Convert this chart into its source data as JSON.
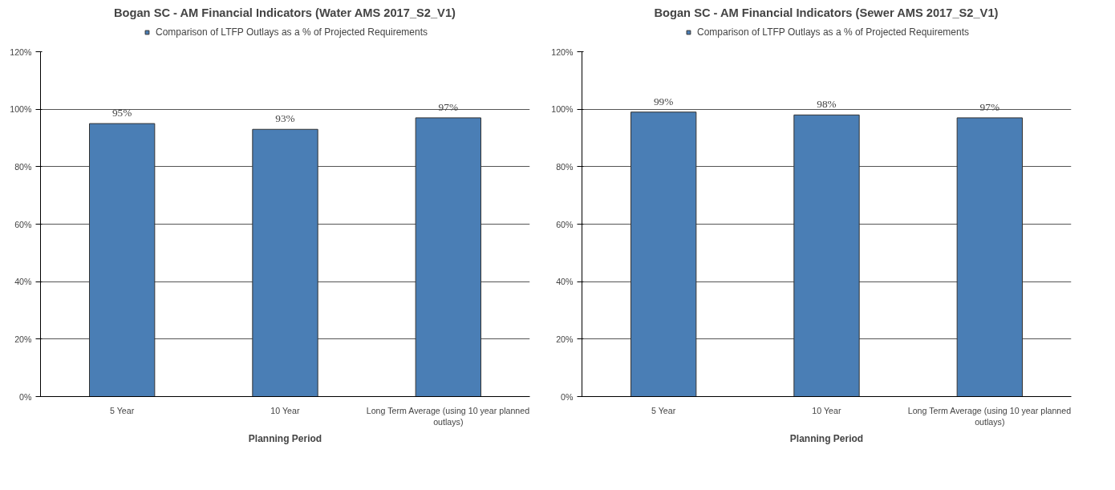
{
  "chart_data": [
    {
      "type": "bar",
      "title": "Bogan SC - AM Financial Indicators (Water AMS 2017_S2_V1)",
      "xlabel": "Planning Period",
      "categories": [
        "5 Year",
        "10 Year",
        "Long Term Average (using 10 year planned outlays)"
      ],
      "series": [
        {
          "name": "Comparison of LTFP Outlays as a % of Projected Requirements",
          "color": "#4a7eb5",
          "values": [
            95,
            93,
            97
          ],
          "value_labels": [
            "95%",
            "93%",
            "97%"
          ]
        }
      ],
      "ylim": [
        0,
        120
      ],
      "yticks": [
        {
          "value": 0,
          "label": "0%"
        },
        {
          "value": 20,
          "label": "20%"
        },
        {
          "value": 40,
          "label": "40%"
        },
        {
          "value": 60,
          "label": "60%"
        },
        {
          "value": 80,
          "label": "80%"
        },
        {
          "value": 100,
          "label": "100%"
        },
        {
          "value": 120,
          "label": "120%"
        }
      ],
      "grid": "y",
      "legend": "top"
    },
    {
      "type": "bar",
      "title": "Bogan SC - AM Financial Indicators (Sewer AMS 2017_S2_V1)",
      "xlabel": "Planning Period",
      "categories": [
        "5 Year",
        "10 Year",
        "Long Term Average (using 10 year planned outlays)"
      ],
      "series": [
        {
          "name": "Comparison of LTFP Outlays as a % of Projected Requirements",
          "color": "#4a7eb5",
          "values": [
            99,
            98,
            97
          ],
          "value_labels": [
            "99%",
            "98%",
            "97%"
          ]
        }
      ],
      "ylim": [
        0,
        120
      ],
      "yticks": [
        {
          "value": 0,
          "label": "0%"
        },
        {
          "value": 20,
          "label": "20%"
        },
        {
          "value": 40,
          "label": "40%"
        },
        {
          "value": 60,
          "label": "60%"
        },
        {
          "value": 80,
          "label": "80%"
        },
        {
          "value": 100,
          "label": "100%"
        },
        {
          "value": 120,
          "label": "120%"
        }
      ],
      "grid": "y",
      "legend": "top"
    }
  ]
}
